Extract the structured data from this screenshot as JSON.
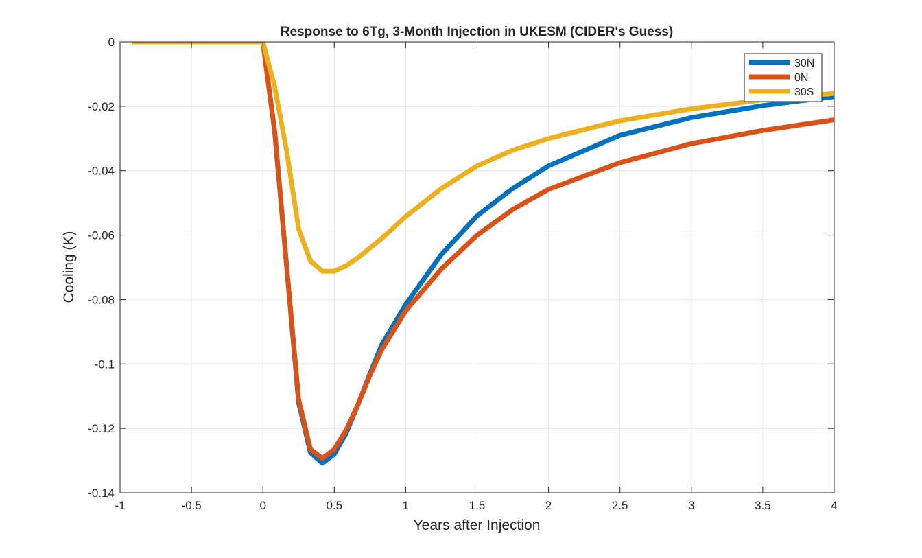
{
  "chart_data": {
    "type": "line",
    "title": "Response to 6Tg, 3-Month Injection in UKESM (CIDER's Guess)",
    "xlabel": "Years after Injection",
    "ylabel": "Cooling (K)",
    "xlim": [
      -1,
      4
    ],
    "ylim": [
      -0.14,
      0
    ],
    "xticks": [
      -1,
      -0.5,
      0,
      0.5,
      1,
      1.5,
      2,
      2.5,
      3,
      3.5,
      4
    ],
    "xtick_labels": [
      "-1",
      "-0.5",
      "0",
      "0.5",
      "1",
      "1.5",
      "2",
      "2.5",
      "3",
      "3.5",
      "4"
    ],
    "yticks": [
      -0.14,
      -0.12,
      -0.1,
      -0.08,
      -0.06,
      -0.04,
      -0.02,
      0
    ],
    "ytick_labels": [
      "-0.14",
      "-0.12",
      "-0.1",
      "-0.08",
      "-0.06",
      "-0.04",
      "-0.02",
      "0"
    ],
    "grid": true,
    "legend_position": "top-right",
    "series": [
      {
        "name": "30N",
        "color": "#0072BD",
        "x": [
          -0.917,
          0,
          0.083,
          0.167,
          0.25,
          0.333,
          0.417,
          0.5,
          0.583,
          0.667,
          0.75,
          0.833,
          1,
          1.25,
          1.5,
          1.75,
          2,
          2.5,
          3,
          3.5,
          4
        ],
        "y": [
          0,
          0,
          -0.028,
          -0.07,
          -0.112,
          -0.1275,
          -0.1308,
          -0.128,
          -0.1215,
          -0.1125,
          -0.103,
          -0.094,
          -0.0815,
          -0.066,
          -0.054,
          -0.0455,
          -0.0385,
          -0.029,
          -0.0235,
          -0.0198,
          -0.017
        ]
      },
      {
        "name": "0N",
        "color": "#D95319",
        "x": [
          -0.917,
          0,
          0.083,
          0.167,
          0.25,
          0.333,
          0.417,
          0.5,
          0.583,
          0.667,
          0.75,
          0.833,
          1,
          1.25,
          1.5,
          1.75,
          2,
          2.5,
          3,
          3.5,
          4
        ],
        "y": [
          0,
          0,
          -0.028,
          -0.07,
          -0.111,
          -0.1265,
          -0.1293,
          -0.1265,
          -0.1205,
          -0.1125,
          -0.1035,
          -0.0955,
          -0.0835,
          -0.0705,
          -0.06,
          -0.052,
          -0.0458,
          -0.0375,
          -0.0316,
          -0.0275,
          -0.0242
        ]
      },
      {
        "name": "30S",
        "color": "#EDB120",
        "x": [
          -0.917,
          0,
          0.083,
          0.167,
          0.25,
          0.333,
          0.417,
          0.5,
          0.583,
          0.667,
          0.75,
          0.833,
          1,
          1.25,
          1.5,
          1.75,
          2,
          2.5,
          3,
          3.5,
          4
        ],
        "y": [
          0,
          0,
          -0.014,
          -0.034,
          -0.058,
          -0.068,
          -0.0712,
          -0.0712,
          -0.0695,
          -0.067,
          -0.064,
          -0.061,
          -0.0542,
          -0.0455,
          -0.0385,
          -0.0336,
          -0.03,
          -0.0245,
          -0.0208,
          -0.018,
          -0.016
        ]
      }
    ]
  }
}
